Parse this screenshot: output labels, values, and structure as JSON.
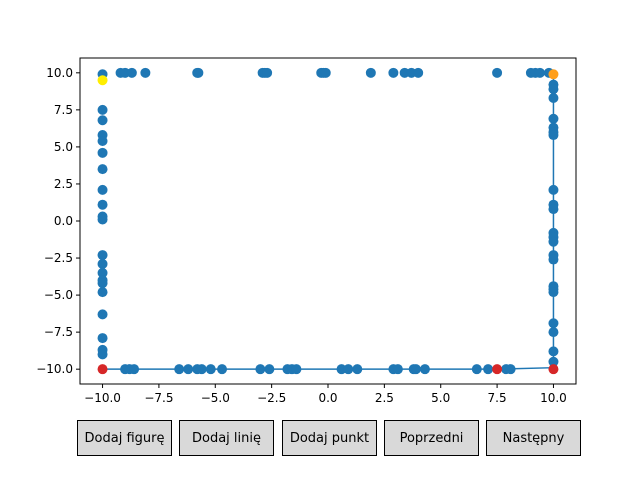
{
  "buttons": {
    "add_figure": "Dodaj figurę",
    "add_line": "Dodaj linię",
    "add_point": "Dodaj punkt",
    "previous": "Poprzedni",
    "next": "Następny"
  },
  "colors": {
    "points": "#1f77b4",
    "line": "#1f77b4",
    "highlight_red": "#d62728",
    "highlight_orange": "#ff9f1c",
    "highlight_yellow": "#ffee00"
  },
  "chart_data": {
    "type": "scatter",
    "title": "",
    "xlabel": "",
    "ylabel": "",
    "xlim": [
      -11,
      11
    ],
    "ylim": [
      -11,
      11
    ],
    "xticks": [
      -10.0,
      -7.5,
      -5.0,
      -2.5,
      0.0,
      2.5,
      5.0,
      7.5,
      10.0
    ],
    "yticks": [
      -10.0,
      -7.5,
      -5.0,
      -2.5,
      0.0,
      2.5,
      5.0,
      7.5,
      10.0
    ],
    "tick_labels_x": [
      "−10.0",
      "−7.5",
      "−5.0",
      "−2.5",
      "0.0",
      "2.5",
      "5.0",
      "7.5",
      "10.0"
    ],
    "tick_labels_y": [
      "−10.0",
      "−7.5",
      "−5.0",
      "−2.5",
      "0.0",
      "2.5",
      "5.0",
      "7.5",
      "10.0"
    ],
    "grid": false,
    "points": [
      [
        -10,
        9.9
      ],
      [
        -9.2,
        10
      ],
      [
        -9.0,
        10
      ],
      [
        -8.7,
        10
      ],
      [
        -8.1,
        10
      ],
      [
        -5.8,
        10
      ],
      [
        -5.75,
        10
      ],
      [
        -2.9,
        10
      ],
      [
        -2.8,
        10
      ],
      [
        -2.7,
        10
      ],
      [
        -0.3,
        10
      ],
      [
        -0.2,
        10
      ],
      [
        -0.1,
        10
      ],
      [
        1.9,
        10
      ],
      [
        2.9,
        10
      ],
      [
        3.4,
        10
      ],
      [
        3.7,
        10
      ],
      [
        4.0,
        10
      ],
      [
        7.5,
        10
      ],
      [
        9.0,
        10
      ],
      [
        9.2,
        10
      ],
      [
        9.4,
        10
      ],
      [
        9.8,
        10
      ],
      [
        -10,
        7.5
      ],
      [
        -10,
        6.8
      ],
      [
        -10,
        5.8
      ],
      [
        -10,
        5.4
      ],
      [
        -10,
        4.6
      ],
      [
        -10,
        3.5
      ],
      [
        -10,
        2.1
      ],
      [
        -10,
        1.1
      ],
      [
        -10,
        0.3
      ],
      [
        -10,
        0.1
      ],
      [
        -10,
        -2.3
      ],
      [
        -10,
        -2.9
      ],
      [
        -10,
        -3.5
      ],
      [
        -10,
        -4.0
      ],
      [
        -10,
        -4.2
      ],
      [
        -10,
        -4.8
      ],
      [
        -10,
        -6.3
      ],
      [
        -10,
        -7.9
      ],
      [
        -10,
        -8.7
      ],
      [
        -10,
        -9.0
      ],
      [
        -9.0,
        -10
      ],
      [
        -8.8,
        -10
      ],
      [
        -8.6,
        -10
      ],
      [
        -6.6,
        -10
      ],
      [
        -6.2,
        -10
      ],
      [
        -5.8,
        -10
      ],
      [
        -5.6,
        -10
      ],
      [
        -5.2,
        -10
      ],
      [
        -4.7,
        -10
      ],
      [
        -3.0,
        -10
      ],
      [
        -2.6,
        -10
      ],
      [
        -1.8,
        -10
      ],
      [
        -1.6,
        -10
      ],
      [
        -1.4,
        -10
      ],
      [
        0.6,
        -10
      ],
      [
        0.9,
        -10
      ],
      [
        1.3,
        -10
      ],
      [
        2.9,
        -10
      ],
      [
        3.1,
        -10
      ],
      [
        3.8,
        -10
      ],
      [
        3.9,
        -10
      ],
      [
        4.3,
        -10
      ],
      [
        6.6,
        -10
      ],
      [
        7.1,
        -10
      ],
      [
        7.9,
        -10
      ],
      [
        8.1,
        -10
      ],
      [
        10,
        9.2
      ],
      [
        10,
        8.9
      ],
      [
        10,
        8.3
      ],
      [
        10,
        6.9
      ],
      [
        10,
        6.3
      ],
      [
        10,
        6.0
      ],
      [
        10,
        5.8
      ],
      [
        10,
        2.1
      ],
      [
        10,
        1.1
      ],
      [
        10,
        0.8
      ],
      [
        10,
        -0.8
      ],
      [
        10,
        -1.1
      ],
      [
        10,
        -1.4
      ],
      [
        10,
        -2.3
      ],
      [
        10,
        -2.6
      ],
      [
        10,
        -4.4
      ],
      [
        10,
        -4.6
      ],
      [
        10,
        -4.8
      ],
      [
        10,
        -6.9
      ],
      [
        10,
        -7.5
      ],
      [
        10,
        -8.8
      ],
      [
        10,
        -9.5
      ]
    ],
    "line": [
      [
        -10,
        -10
      ],
      [
        7.5,
        -10
      ],
      [
        10,
        -9.9
      ],
      [
        10,
        9.9
      ]
    ],
    "highlighted_points": [
      {
        "x": -10,
        "y": -10,
        "color": "red"
      },
      {
        "x": 7.5,
        "y": -10,
        "color": "red"
      },
      {
        "x": 10,
        "y": -10,
        "color": "red"
      },
      {
        "x": 10,
        "y": 9.9,
        "color": "orange"
      },
      {
        "x": -10,
        "y": 9.5,
        "color": "yellow"
      }
    ]
  }
}
